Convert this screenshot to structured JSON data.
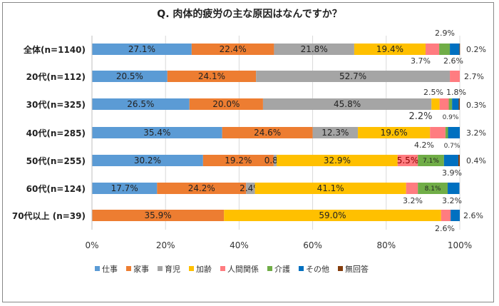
{
  "chart_data": {
    "type": "bar",
    "orientation": "horizontal-stacked-100",
    "title": "Q. 肉体的疲労の主な原因はなんですか？",
    "categories": [
      "全体(n=1140)",
      "20代(n=112)",
      "30代(n=325)",
      "40代(n=285)",
      "50代(n=255)",
      "60代(n=124)",
      "70代以上 (n=39)"
    ],
    "series": [
      {
        "name": "仕事",
        "color": "#5B9BD5",
        "values": [
          27.1,
          20.5,
          26.5,
          35.4,
          30.2,
          17.7,
          0
        ]
      },
      {
        "name": "家事",
        "color": "#ED7D31",
        "values": [
          22.4,
          24.1,
          20.0,
          24.6,
          19.2,
          24.2,
          35.9
        ]
      },
      {
        "name": "育児",
        "color": "#A5A5A5",
        "values": [
          21.8,
          52.7,
          45.8,
          12.3,
          0.8,
          2.4,
          0
        ]
      },
      {
        "name": "加齢",
        "color": "#FFC000",
        "values": [
          19.4,
          0,
          2.2,
          19.6,
          32.9,
          41.1,
          59.0
        ]
      },
      {
        "name": "人間関係",
        "color": "#FF7C80",
        "values": [
          3.7,
          2.7,
          2.5,
          4.2,
          5.5,
          3.2,
          2.6
        ]
      },
      {
        "name": "介護",
        "color": "#70AD47",
        "values": [
          2.9,
          0,
          0.9,
          0.7,
          7.1,
          8.1,
          0
        ]
      },
      {
        "name": "その他",
        "color": "#0070C0",
        "values": [
          2.6,
          0,
          1.8,
          3.2,
          3.9,
          3.2,
          2.6
        ]
      },
      {
        "name": "無回答",
        "color": "#843C0C",
        "values": [
          0.2,
          0,
          0.3,
          0,
          0.4,
          0,
          0
        ]
      }
    ],
    "xlim": [
      0,
      100
    ],
    "xticks": [
      "0%",
      "20%",
      "40%",
      "60%",
      "80%",
      "100%"
    ],
    "grid": true,
    "legend": "bottom"
  }
}
